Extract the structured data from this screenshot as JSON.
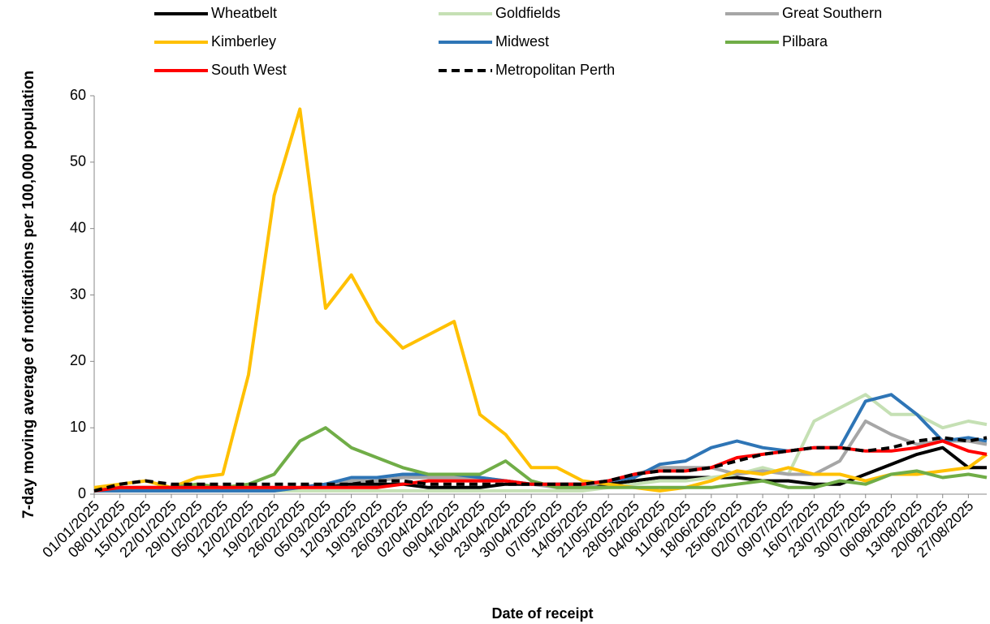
{
  "chart_data": {
    "type": "line",
    "x_label": "Date of receipt",
    "y_label": "7-day moving average of notifications per 100,000 population",
    "x": [
      "01/01/2025",
      "08/01/2025",
      "15/01/2025",
      "22/01/2025",
      "29/01/2025",
      "05/02/2025",
      "12/02/2025",
      "19/02/2025",
      "26/02/2025",
      "05/03/2025",
      "12/03/2025",
      "19/03/2025",
      "26/03/2025",
      "02/04/2025",
      "09/04/2025",
      "16/04/2025",
      "23/04/2025",
      "30/04/2025",
      "07/05/2025",
      "14/05/2025",
      "21/05/2025",
      "28/05/2025",
      "04/06/2025",
      "11/06/2025",
      "18/06/2025",
      "25/06/2025",
      "02/07/2025",
      "09/07/2025",
      "16/07/2025",
      "23/07/2025",
      "30/07/2025",
      "06/08/2025",
      "13/08/2025",
      "20/08/2025",
      "27/08/2025",
      "01/09/2025"
    ],
    "xlim": [
      "01/01/2025",
      "01/09/2025"
    ],
    "xticks": [
      "01/01/2025",
      "08/01/2025",
      "15/01/2025",
      "22/01/2025",
      "29/01/2025",
      "05/02/2025",
      "12/02/2025",
      "19/02/2025",
      "26/02/2025",
      "05/03/2025",
      "12/03/2025",
      "19/03/2025",
      "26/03/2025",
      "02/04/2025",
      "09/04/2025",
      "16/04/2025",
      "23/04/2025",
      "30/04/2025",
      "07/05/2025",
      "14/05/2025",
      "21/05/2025",
      "28/05/2025",
      "04/06/2025",
      "11/06/2025",
      "18/06/2025",
      "25/06/2025",
      "02/07/2025",
      "09/07/2025",
      "16/07/2025",
      "23/07/2025",
      "30/07/2025",
      "06/08/2025",
      "13/08/2025",
      "20/08/2025",
      "27/08/2025"
    ],
    "ylim": [
      0,
      60
    ],
    "yticks": [
      0,
      10,
      20,
      30,
      40,
      50,
      60
    ],
    "series": [
      {
        "name": "Wheatbelt",
        "color": "#000000",
        "style": "solid",
        "values": [
          0.5,
          0.5,
          0.5,
          0.5,
          0.5,
          0.5,
          0.5,
          0.5,
          1,
          1.5,
          1.5,
          1.5,
          1.5,
          1,
          1,
          1,
          1.5,
          1.5,
          1.5,
          1.5,
          1.5,
          2,
          2.5,
          2.5,
          2.5,
          2.5,
          2,
          2,
          1.5,
          1.5,
          3,
          4.5,
          6,
          7,
          4,
          4
        ]
      },
      {
        "name": "Goldfields",
        "color": "#c5e0b4",
        "style": "solid",
        "values": [
          1,
          0.5,
          0.5,
          0.5,
          0.5,
          0.5,
          0.5,
          0.5,
          0.5,
          0.5,
          0.5,
          0.5,
          0.5,
          0.5,
          0.5,
          0.5,
          0.5,
          0.5,
          0.5,
          0.5,
          1,
          1.5,
          2,
          2,
          2.5,
          3,
          4,
          3,
          11,
          13,
          15,
          12,
          12,
          10,
          11,
          10.5
        ]
      },
      {
        "name": "Great Southern",
        "color": "#a6a6a6",
        "style": "solid",
        "values": [
          0.5,
          0.5,
          0.5,
          0.5,
          0.5,
          0.5,
          0.5,
          0.5,
          1,
          1.5,
          2,
          2,
          2.5,
          2.5,
          2.5,
          2.5,
          2,
          1.5,
          1,
          1,
          2,
          3,
          4,
          4,
          4,
          3,
          3.5,
          3,
          3,
          5,
          11,
          9,
          7.5,
          8,
          8,
          7.5
        ]
      },
      {
        "name": "Kimberley",
        "color": "#ffc000",
        "style": "solid",
        "values": [
          1,
          1.5,
          2,
          1,
          2.5,
          3,
          18,
          45,
          58,
          28,
          33,
          26,
          22,
          24,
          26,
          12,
          9,
          4,
          4,
          2,
          1.5,
          1,
          0.5,
          1,
          2,
          3.5,
          3,
          4,
          3,
          3,
          2,
          3,
          3,
          3.5,
          4,
          6
        ]
      },
      {
        "name": "Midwest",
        "color": "#2e75b6",
        "style": "solid",
        "values": [
          0.5,
          0.5,
          0.5,
          0.5,
          0.5,
          0.5,
          0.5,
          0.5,
          1,
          1.5,
          2.5,
          2.5,
          3,
          3,
          3,
          2.5,
          2,
          1.5,
          1.5,
          1.5,
          2,
          2.5,
          4.5,
          5,
          7,
          8,
          7,
          6.5,
          7,
          7,
          14,
          15,
          12,
          8,
          8.5,
          8
        ]
      },
      {
        "name": "Pilbara",
        "color": "#70ad47",
        "style": "solid",
        "values": [
          0.5,
          1,
          1,
          1,
          1.5,
          1,
          1.5,
          3,
          8,
          10,
          7,
          5.5,
          4,
          3,
          3,
          3,
          5,
          2,
          1,
          1,
          1,
          1,
          1,
          1,
          1,
          1.5,
          2,
          1,
          1,
          2,
          1.5,
          3,
          3.5,
          2.5,
          3,
          2.5
        ]
      },
      {
        "name": "South West",
        "color": "#ff0000",
        "style": "solid",
        "values": [
          0.5,
          1,
          1,
          1,
          1,
          1,
          1,
          1,
          1,
          1,
          1,
          1,
          1.5,
          2,
          2,
          2,
          2,
          1.5,
          1.5,
          1.5,
          2,
          3,
          3.5,
          3.5,
          4,
          5.5,
          6,
          6.5,
          7,
          7,
          6.5,
          6.5,
          7,
          8,
          6.5,
          6
        ]
      },
      {
        "name": "Metropolitan Perth",
        "color": "#000000",
        "style": "dashed",
        "values": [
          0.5,
          1.5,
          2,
          1.5,
          1.5,
          1.5,
          1.5,
          1.5,
          1.5,
          1.5,
          1.5,
          2,
          2,
          1.5,
          1.5,
          1.5,
          1.5,
          1.5,
          1.5,
          1.5,
          2,
          3,
          3.5,
          3.5,
          4,
          5,
          6,
          6.5,
          7,
          7,
          6.5,
          7,
          8,
          8.5,
          8,
          8.5
        ]
      }
    ]
  }
}
